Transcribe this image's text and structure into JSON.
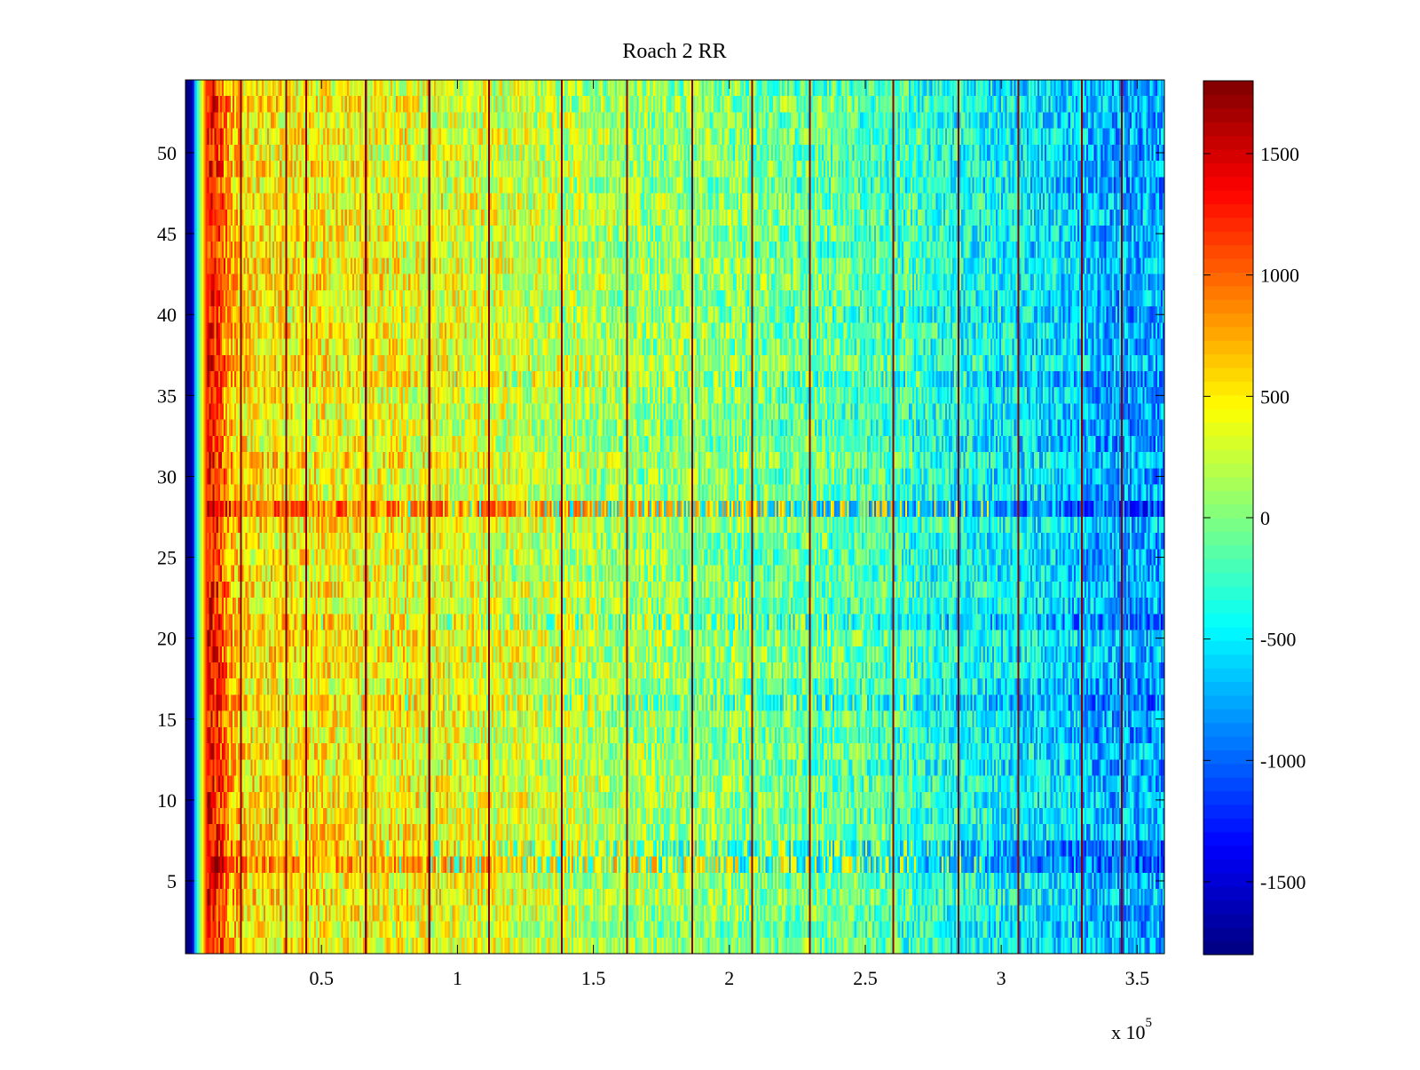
{
  "chart_data": {
    "type": "heatmap",
    "title": "Roach 2 RR",
    "xlabel": "",
    "ylabel": "",
    "x_exponent_label": "x 10",
    "x_exponent_power": "5",
    "xlim": [
      0,
      360000
    ],
    "ylim": [
      0.5,
      54.5
    ],
    "n_rows": 54,
    "xticks": [
      {
        "value": 50000,
        "label": "0.5"
      },
      {
        "value": 100000,
        "label": "1"
      },
      {
        "value": 150000,
        "label": "1.5"
      },
      {
        "value": 200000,
        "label": "2"
      },
      {
        "value": 250000,
        "label": "2.5"
      },
      {
        "value": 300000,
        "label": "3"
      },
      {
        "value": 350000,
        "label": "3.5"
      }
    ],
    "yticks": [
      {
        "value": 5,
        "label": "5"
      },
      {
        "value": 10,
        "label": "10"
      },
      {
        "value": 15,
        "label": "15"
      },
      {
        "value": 20,
        "label": "20"
      },
      {
        "value": 25,
        "label": "25"
      },
      {
        "value": 30,
        "label": "30"
      },
      {
        "value": 35,
        "label": "35"
      },
      {
        "value": 40,
        "label": "40"
      },
      {
        "value": 45,
        "label": "45"
      },
      {
        "value": 50,
        "label": "50"
      }
    ],
    "colorbar": {
      "colormap": "jet",
      "clim": [
        -1800,
        1800
      ],
      "ticks": [
        {
          "value": 1500,
          "label": "1500"
        },
        {
          "value": 1000,
          "label": "1000"
        },
        {
          "value": 500,
          "label": "500"
        },
        {
          "value": 0,
          "label": "0"
        },
        {
          "value": -500,
          "label": "-500"
        },
        {
          "value": -1000,
          "label": "-1000"
        },
        {
          "value": -1500,
          "label": "-1500"
        }
      ]
    },
    "trend": {
      "x": [
        0,
        2500,
        4000,
        6000,
        8000,
        12000,
        16000,
        25000,
        50000,
        100000,
        150000,
        200000,
        250000,
        280000,
        300000,
        320000,
        340000,
        360000
      ],
      "values": [
        -1800,
        -1700,
        -400,
        300,
        1350,
        1200,
        700,
        500,
        450,
        350,
        150,
        0,
        -150,
        -350,
        -450,
        -550,
        -750,
        -750
      ]
    },
    "spike_lines_x": [
      20000,
      36500,
      44000,
      66000,
      89000,
      111000,
      138000,
      162000,
      186000,
      208000,
      229000,
      260000,
      284000,
      306000,
      329000,
      344000
    ],
    "spike_value": 1750,
    "highlight_rows": [
      {
        "row": 28,
        "offset": 400
      },
      {
        "row": 6,
        "offset": 300
      },
      {
        "row": 7,
        "offset": 200
      },
      {
        "row": 16,
        "offset": 150
      },
      {
        "row": 21,
        "offset": 150
      },
      {
        "row": 36,
        "offset": 120
      }
    ]
  }
}
